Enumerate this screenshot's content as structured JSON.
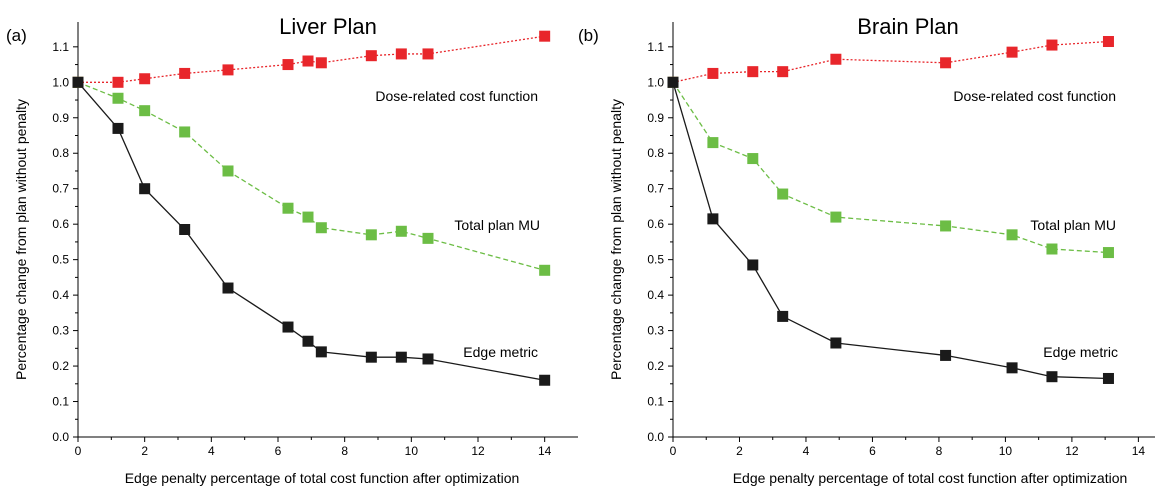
{
  "chart_data": [
    {
      "type": "line",
      "panel_letter": "(a)",
      "title": "Liver Plan",
      "xlabel": "Edge penalty percentage of total cost function after optimization",
      "ylabel": "Percentage change from plan without penalty",
      "xlim": [
        0,
        15
      ],
      "ylim": [
        0.0,
        1.17
      ],
      "xticks": [
        0,
        2,
        4,
        6,
        8,
        10,
        12,
        14
      ],
      "yticks": [
        0.0,
        0.1,
        0.2,
        0.3,
        0.4,
        0.5,
        0.6,
        0.7,
        0.8,
        0.9,
        1.0,
        1.1
      ],
      "series": [
        {
          "name": "Dose-related cost function",
          "color": "#e8262b",
          "line_style": "dotted",
          "x": [
            0,
            1.2,
            2.0,
            3.2,
            4.5,
            6.3,
            6.9,
            7.3,
            8.8,
            9.7,
            10.5,
            14.0
          ],
          "y": [
            1.0,
            1.0,
            1.01,
            1.025,
            1.035,
            1.05,
            1.06,
            1.055,
            1.075,
            1.08,
            1.08,
            1.13
          ]
        },
        {
          "name": "Total plan MU",
          "color": "#6cbd45",
          "line_style": "dashed",
          "x": [
            0,
            1.2,
            2.0,
            3.2,
            4.5,
            6.3,
            6.9,
            7.3,
            8.8,
            9.7,
            10.5,
            14.0
          ],
          "y": [
            1.0,
            0.955,
            0.92,
            0.86,
            0.75,
            0.645,
            0.62,
            0.59,
            0.57,
            0.58,
            0.56,
            0.47
          ]
        },
        {
          "name": "Edge metric",
          "color": "#1a1a1a",
          "line_style": "solid",
          "x": [
            0,
            1.2,
            2.0,
            3.2,
            4.5,
            6.3,
            6.9,
            7.3,
            8.8,
            9.7,
            10.5,
            14.0
          ],
          "y": [
            1.0,
            0.87,
            0.7,
            0.585,
            0.42,
            0.31,
            0.27,
            0.24,
            0.225,
            0.225,
            0.22,
            0.16
          ]
        }
      ]
    },
    {
      "type": "line",
      "panel_letter": "(b)",
      "title": "Brain Plan",
      "xlabel": "Edge penalty percentage of total cost function after optimization",
      "ylabel": "Percentage change from plan without penalty",
      "xlim": [
        0,
        14.5
      ],
      "ylim": [
        0.0,
        1.17
      ],
      "xticks": [
        0,
        2,
        4,
        6,
        8,
        10,
        12,
        14
      ],
      "yticks": [
        0.0,
        0.1,
        0.2,
        0.3,
        0.4,
        0.5,
        0.6,
        0.7,
        0.8,
        0.9,
        1.0,
        1.1
      ],
      "series": [
        {
          "name": "Dose-related cost function",
          "color": "#e8262b",
          "line_style": "dotted",
          "x": [
            0,
            1.2,
            2.4,
            3.3,
            4.9,
            8.2,
            10.2,
            11.4,
            13.1
          ],
          "y": [
            1.0,
            1.025,
            1.03,
            1.03,
            1.065,
            1.055,
            1.085,
            1.105,
            1.115
          ]
        },
        {
          "name": "Total plan MU",
          "color": "#6cbd45",
          "line_style": "dashed",
          "x": [
            0,
            1.2,
            2.4,
            3.3,
            4.9,
            8.2,
            10.2,
            11.4,
            13.1
          ],
          "y": [
            1.0,
            0.83,
            0.785,
            0.685,
            0.62,
            0.595,
            0.57,
            0.53,
            0.52
          ]
        },
        {
          "name": "Edge metric",
          "color": "#1a1a1a",
          "line_style": "solid",
          "x": [
            0,
            1.2,
            2.4,
            3.3,
            4.9,
            8.2,
            10.2,
            11.4,
            13.1
          ],
          "y": [
            1.0,
            0.615,
            0.485,
            0.34,
            0.265,
            0.23,
            0.195,
            0.17,
            0.165
          ]
        }
      ]
    }
  ]
}
